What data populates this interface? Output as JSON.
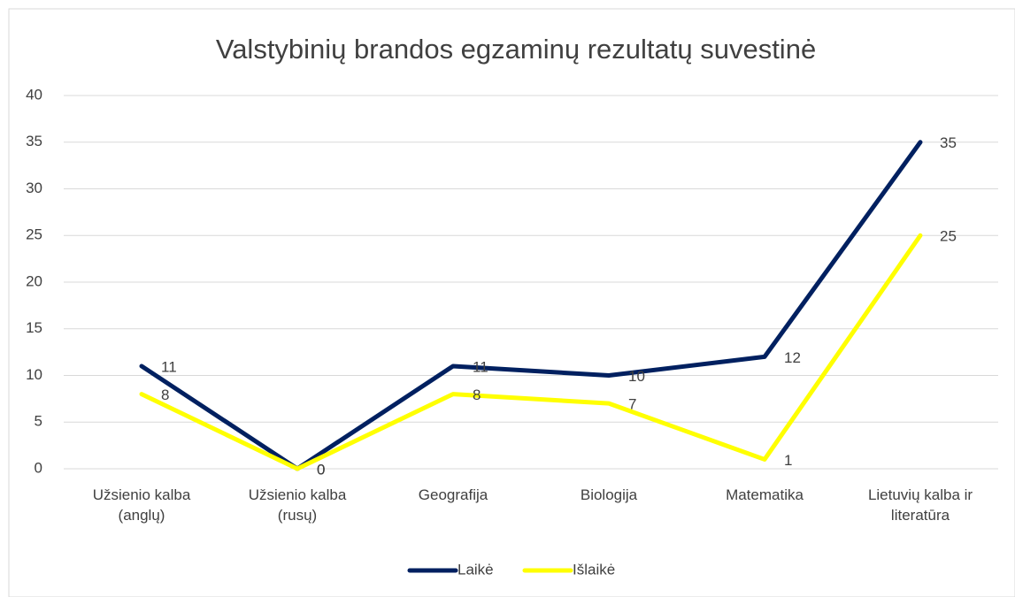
{
  "chart_data": {
    "type": "line",
    "title": "Valstybinių brandos egzaminų rezultatų suvestinė",
    "categories": [
      "Užsienio kalba (anglų)",
      "Užsienio kalba (rusų)",
      "Geografija",
      "Biologija",
      "Matematika",
      "Lietuvių kalba ir literatūra"
    ],
    "series": [
      {
        "name": "Laikė",
        "color": "#002060",
        "values": [
          11,
          0,
          11,
          10,
          12,
          35
        ]
      },
      {
        "name": "Išlaikė",
        "color": "#ffff00",
        "values": [
          8,
          0,
          8,
          7,
          1,
          25
        ]
      }
    ],
    "ylim": [
      0,
      40
    ],
    "yticks": [
      0,
      5,
      10,
      15,
      20,
      25,
      30,
      35,
      40
    ],
    "grid": true,
    "legend": "bottom"
  }
}
